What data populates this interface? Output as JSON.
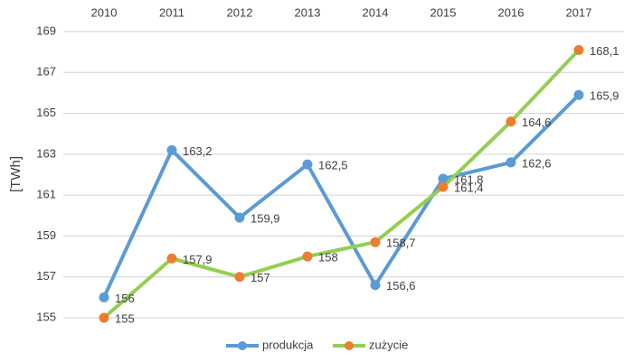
{
  "chart_data": {
    "type": "line",
    "y_label": "[TWh]",
    "categories": [
      "2010",
      "2011",
      "2012",
      "2013",
      "2014",
      "2015",
      "2016",
      "2017"
    ],
    "ylim": [
      155,
      169
    ],
    "yticks": [
      155,
      157,
      159,
      161,
      163,
      165,
      167,
      169
    ],
    "grid": true,
    "legend": "bottom",
    "series": [
      {
        "name": "produkcja",
        "color": "#5b9bd5",
        "marker_color": "#5b9bd5",
        "values": [
          156,
          163.2,
          159.9,
          162.5,
          156.6,
          161.8,
          162.6,
          165.9
        ],
        "value_labels": [
          "156",
          "163,2",
          "159,9",
          "162,5",
          "156,6",
          "161,8",
          "162,6",
          "165,9"
        ]
      },
      {
        "name": "zużycie",
        "color": "#92d050",
        "marker_color": "#ed7d31",
        "values": [
          155,
          157.9,
          157,
          158,
          158.7,
          161.4,
          164.6,
          168.1
        ],
        "value_labels": [
          "155",
          "157,9",
          "157",
          "158",
          "158,7",
          "161,4",
          "164,6",
          "168,1"
        ]
      }
    ]
  }
}
